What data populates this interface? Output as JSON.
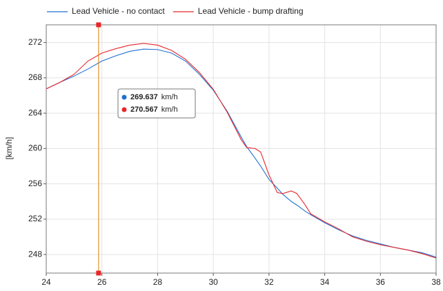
{
  "chart_data": {
    "type": "line",
    "y_label": "[km/h]",
    "x": [
      24,
      24.5,
      25,
      25.5,
      26,
      26.5,
      27,
      27.5,
      28,
      28.5,
      29,
      29.5,
      30,
      30.5,
      31,
      31.2,
      31.5,
      31.7,
      32,
      32.3,
      32.5,
      32.8,
      33,
      33.3,
      33.5,
      34,
      34.5,
      35,
      35.5,
      36,
      36.5,
      37,
      37.5,
      38
    ],
    "series": [
      {
        "name": "Lead Vehicle - no contact",
        "color": "#1f6fd0",
        "values": [
          266.75,
          267.5,
          268.2,
          269.0,
          269.9,
          270.5,
          271.0,
          271.25,
          271.2,
          270.8,
          269.9,
          268.4,
          266.6,
          264.2,
          261.3,
          260.2,
          258.9,
          258.0,
          256.5,
          255.5,
          254.8,
          254.0,
          253.6,
          252.9,
          252.5,
          251.6,
          250.8,
          250.1,
          249.6,
          249.2,
          248.8,
          248.5,
          248.2,
          247.7
        ]
      },
      {
        "name": "Lead Vehicle - bump drafting",
        "color": "#e8262a",
        "values": [
          266.75,
          267.5,
          268.4,
          269.9,
          270.8,
          271.3,
          271.7,
          271.9,
          271.7,
          271.1,
          270.1,
          268.6,
          266.7,
          264.1,
          261.0,
          260.1,
          260.0,
          259.6,
          257.0,
          255.0,
          254.9,
          255.2,
          254.9,
          253.6,
          252.6,
          251.7,
          250.9,
          250.0,
          249.5,
          249.1,
          248.8,
          248.5,
          248.1,
          247.6
        ]
      }
    ],
    "xlim": [
      24,
      38
    ],
    "xticks": [
      24,
      26,
      28,
      30,
      32,
      34,
      36,
      38
    ],
    "ylim": [
      245.9,
      274
    ],
    "yticks": [
      248,
      252,
      256,
      260,
      264,
      268,
      272
    ],
    "grid": true,
    "cursor": {
      "x": 25.88,
      "color": "#e07b00",
      "readouts": [
        {
          "value": 269.637,
          "unit": "km/h"
        },
        {
          "value": 270.567,
          "unit": "km/h"
        }
      ]
    }
  }
}
